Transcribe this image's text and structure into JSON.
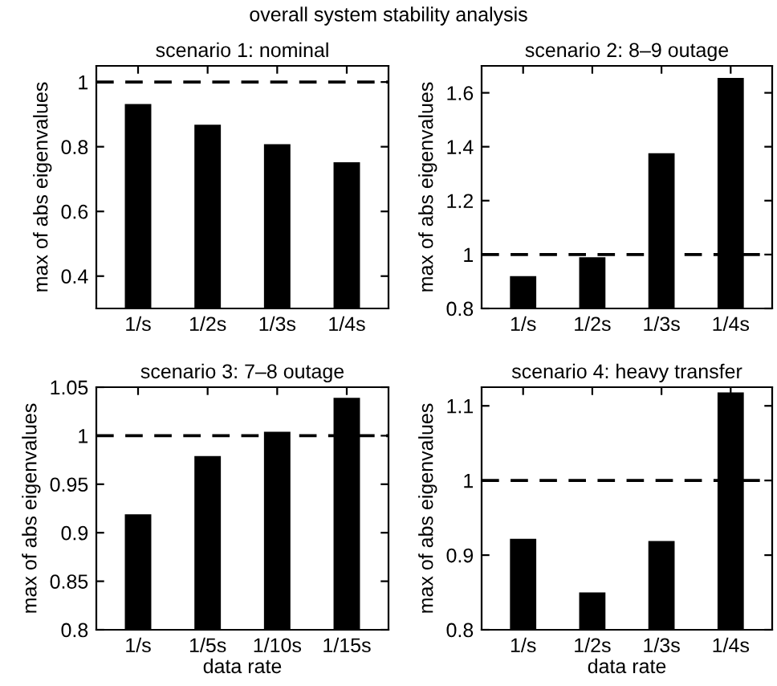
{
  "chart_data": [
    {
      "type": "bar",
      "title": "scenario 1: nominal",
      "ylabel": "max of abs eigenvalues",
      "annotations": [
        "overall system stability analysis"
      ],
      "categories": [
        "1/s",
        "1/2s",
        "1/3s",
        "1/4s"
      ],
      "values": [
        0.932,
        0.868,
        0.808,
        0.752
      ],
      "color": "#000000",
      "ylim": [
        0.3,
        1.05
      ],
      "yticks": [
        0.4,
        0.6,
        0.8,
        1
      ],
      "grid": false,
      "ref_lines": [
        {
          "axis": "y",
          "value": 1,
          "color": "#000000",
          "line_style": "dashed"
        }
      ]
    },
    {
      "type": "bar",
      "title": "scenario 2: 8–9 outage",
      "ylabel": "max of abs eigenvalues",
      "categories": [
        "1/s",
        "1/2s",
        "1/3s",
        "1/4s"
      ],
      "values": [
        0.92,
        0.99,
        1.376,
        1.655
      ],
      "color": "#000000",
      "ylim": [
        0.8,
        1.7
      ],
      "yticks": [
        0.8,
        1,
        1.2,
        1.4,
        1.6
      ],
      "grid": false,
      "ref_lines": [
        {
          "axis": "y",
          "value": 1,
          "color": "#000000",
          "line_style": "dashed"
        }
      ]
    },
    {
      "type": "bar",
      "title": "scenario 3: 7–8 outage",
      "xlabel": "data rate",
      "ylabel": "max of abs eigenvalues",
      "categories": [
        "1/s",
        "1/5s",
        "1/10s",
        "1/15s"
      ],
      "values": [
        0.919,
        0.979,
        1.004,
        1.039
      ],
      "color": "#000000",
      "ylim": [
        0.8,
        1.05
      ],
      "yticks": [
        0.8,
        0.85,
        0.9,
        0.95,
        1,
        1.05
      ],
      "grid": false,
      "ref_lines": [
        {
          "axis": "y",
          "value": 1,
          "color": "#000000",
          "line_style": "dashed"
        }
      ]
    },
    {
      "type": "bar",
      "title": "scenario 4: heavy transfer",
      "xlabel": "data rate",
      "ylabel": "max of abs eigenvalues",
      "categories": [
        "1/s",
        "1/2s",
        "1/3s",
        "1/4s"
      ],
      "values": [
        0.922,
        0.85,
        0.919,
        1.118
      ],
      "color": "#000000",
      "ylim": [
        0.8,
        1.125
      ],
      "yticks": [
        0.8,
        0.9,
        1,
        1.1
      ],
      "grid": false,
      "ref_lines": [
        {
          "axis": "y",
          "value": 1,
          "color": "#000000",
          "line_style": "dashed"
        }
      ]
    }
  ]
}
